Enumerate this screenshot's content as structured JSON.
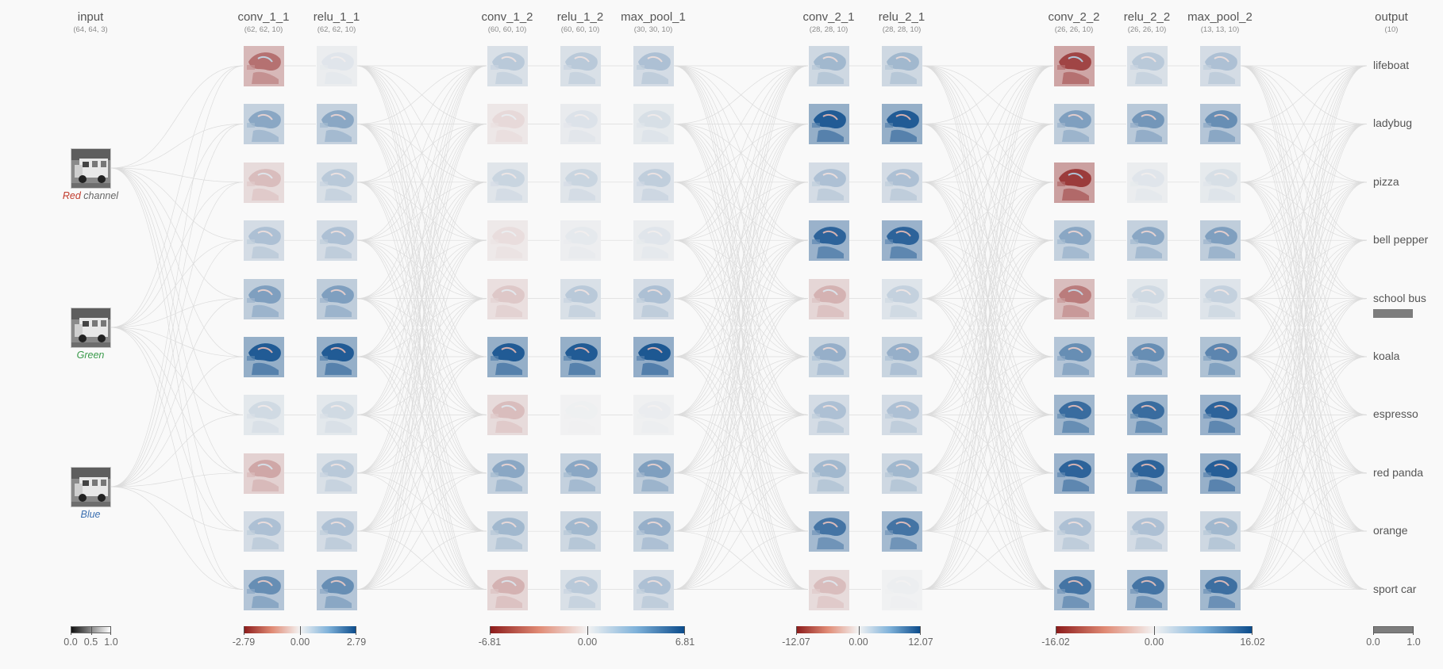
{
  "colors": {
    "negative": "#8b1a1a",
    "neutral": "#f3f3f3",
    "positive": "#0a4a8a",
    "edge": "#dcdcdc",
    "red_channel": "#c0392b",
    "green_channel": "#3a9a4b",
    "blue_channel": "#3b6fb0"
  },
  "input": {
    "name": "input",
    "shape": "(64, 64, 3)",
    "channels": [
      {
        "prefix": "Red",
        "label": " channel",
        "prefix_color": "red_channel"
      },
      {
        "prefix": "",
        "label": "Green",
        "prefix_color": "green_channel"
      },
      {
        "prefix": "",
        "label": "Blue",
        "prefix_color": "blue_channel"
      }
    ]
  },
  "layers": [
    {
      "name": "conv_1_1",
      "shape": "(62, 62, 10)",
      "intensities": [
        -0.6,
        0.45,
        -0.25,
        0.3,
        0.5,
        0.9,
        0.15,
        -0.35,
        0.3,
        0.6
      ]
    },
    {
      "name": "relu_1_1",
      "shape": "(62, 62, 10)",
      "intensities": [
        0.08,
        0.45,
        0.25,
        0.3,
        0.5,
        0.9,
        0.15,
        0.25,
        0.3,
        0.6
      ]
    },
    {
      "name": "conv_1_2",
      "shape": "(60, 60, 10)",
      "intensities": [
        0.25,
        -0.12,
        0.18,
        -0.1,
        -0.2,
        0.9,
        -0.25,
        0.45,
        0.35,
        -0.3
      ]
    },
    {
      "name": "relu_1_2",
      "shape": "(60, 60, 10)",
      "intensities": [
        0.25,
        0.1,
        0.18,
        0.06,
        0.25,
        0.9,
        0.02,
        0.45,
        0.35,
        0.25
      ]
    },
    {
      "name": "max_pool_1",
      "shape": "(30, 30, 10)",
      "intensities": [
        0.3,
        0.12,
        0.22,
        0.08,
        0.3,
        0.92,
        0.04,
        0.5,
        0.4,
        0.3
      ]
    },
    {
      "name": "conv_2_1",
      "shape": "(28, 28, 10)",
      "intensities": [
        0.35,
        0.9,
        0.3,
        0.85,
        -0.3,
        0.4,
        0.3,
        0.35,
        0.75,
        -0.25
      ]
    },
    {
      "name": "relu_2_1",
      "shape": "(28, 28, 10)",
      "intensities": [
        0.35,
        0.9,
        0.3,
        0.85,
        0.2,
        0.4,
        0.3,
        0.35,
        0.75,
        0.03
      ]
    },
    {
      "name": "conv_2_2",
      "shape": "(26, 26, 10)",
      "intensities": [
        -0.8,
        0.5,
        -0.85,
        0.45,
        -0.55,
        0.6,
        0.8,
        0.85,
        0.3,
        0.75
      ]
    },
    {
      "name": "relu_2_2",
      "shape": "(26, 26, 10)",
      "intensities": [
        0.25,
        0.55,
        0.08,
        0.45,
        0.15,
        0.6,
        0.8,
        0.85,
        0.3,
        0.75
      ]
    },
    {
      "name": "max_pool_2",
      "shape": "(13, 13, 10)",
      "intensities": [
        0.3,
        0.6,
        0.12,
        0.5,
        0.2,
        0.65,
        0.85,
        0.88,
        0.35,
        0.78
      ]
    }
  ],
  "output": {
    "name": "output",
    "shape": "(10)",
    "classes": [
      "lifeboat",
      "ladybug",
      "pizza",
      "bell pepper",
      "school bus",
      "koala",
      "espresso",
      "red panda",
      "orange",
      "sport car"
    ],
    "probabilities": [
      0,
      0,
      0,
      0,
      1.0,
      0,
      0,
      0,
      0,
      0
    ]
  },
  "scales": [
    {
      "name": "input-scale",
      "type": "gray",
      "labels": [
        "0.0",
        "0.5",
        "1.0"
      ]
    },
    {
      "name": "scale-1",
      "type": "diverging",
      "labels": [
        "-2.79",
        "0.00",
        "2.79"
      ]
    },
    {
      "name": "scale-2",
      "type": "diverging",
      "labels": [
        "-6.81",
        "0.00",
        "6.81"
      ]
    },
    {
      "name": "scale-3",
      "type": "diverging",
      "labels": [
        "-12.07",
        "0.00",
        "12.07"
      ]
    },
    {
      "name": "scale-4",
      "type": "diverging",
      "labels": [
        "-16.02",
        "0.00",
        "16.02"
      ]
    },
    {
      "name": "output-scale",
      "type": "gray",
      "labels": [
        "0.0",
        "1.0"
      ]
    }
  ]
}
